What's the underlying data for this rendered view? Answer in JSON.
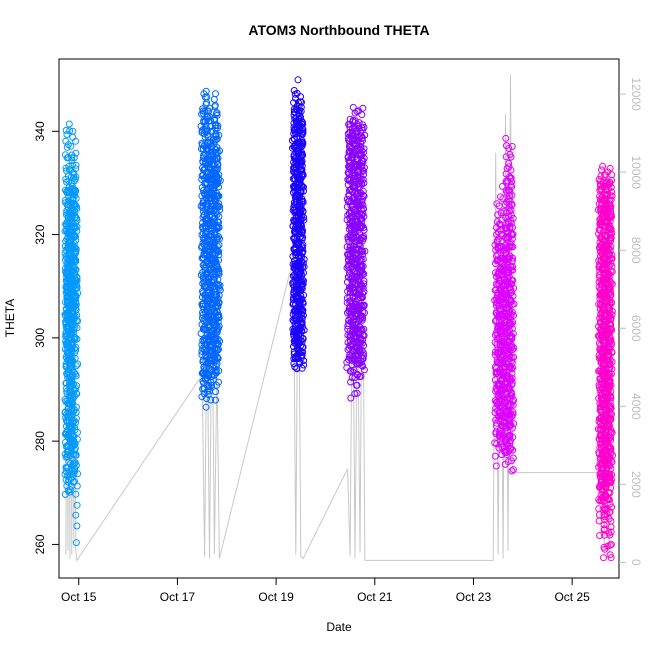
{
  "chart_data": {
    "type": "scatter",
    "title": "ATOM3 Northbound THETA",
    "xlabel": "Date",
    "ylabel": "THETA",
    "x_ticks": [
      "Oct 15",
      "Oct 17",
      "Oct 19",
      "Oct 21",
      "Oct 23",
      "Oct 25"
    ],
    "y_ticks_left": [
      "260",
      "280",
      "300",
      "320",
      "340"
    ],
    "y_ticks_right": [
      "0",
      "2000",
      "4000",
      "6000",
      "8000",
      "10000",
      "12000"
    ],
    "xlim_days": [
      14.6,
      25.95
    ],
    "ylim_left": [
      253.5,
      354
    ],
    "ylim_right": [
      -400,
      12900
    ],
    "colors": {
      "axis": "#000000",
      "right_axis": "#bdbdbd",
      "secondary_line": "#c8c8c8"
    },
    "series": [
      {
        "color": "#0099ff",
        "point_runs": [
          {
            "x": [
              14.74,
              14.96
            ],
            "y_low": [
              270,
              311
            ],
            "y_high": [
              312,
              342
            ],
            "n": 26
          },
          {
            "x": [
              14.74,
              14.96
            ],
            "y_low": [
              260,
              286
            ],
            "y_high": [
              276,
              330
            ],
            "n": 12
          }
        ]
      },
      {
        "color": "#0066ff",
        "point_runs": [
          {
            "x": [
              17.5,
              17.85
            ],
            "y_low": [
              287,
              298
            ],
            "y_high": [
              330,
              349
            ],
            "n": 30
          }
        ]
      },
      {
        "color": "#1a00ff",
        "point_runs": [
          {
            "x": [
              19.35,
              19.55
            ],
            "y_low": [
              294,
              298
            ],
            "y_high": [
              340,
              350
            ],
            "n": 22
          }
        ]
      },
      {
        "color": "#8800ff",
        "point_runs": [
          {
            "x": [
              20.45,
              20.78
            ],
            "y_low": [
              289,
              300
            ],
            "y_high": [
              338,
              345
            ],
            "n": 26
          }
        ]
      },
      {
        "color": "#dd00ff",
        "point_runs": [
          {
            "x": [
              23.45,
              23.8
            ],
            "y_low": [
              274,
              285
            ],
            "y_high": [
              310,
              339
            ],
            "n": 28
          }
        ]
      },
      {
        "color": "#ff00cc",
        "point_runs": [
          {
            "x": [
              25.55,
              25.8
            ],
            "y_low": [
              257,
              275
            ],
            "y_high": [
              325,
              333
            ],
            "n": 26
          }
        ]
      }
    ],
    "secondary_line": {
      "axis": "right",
      "x": [
        14.74,
        14.76,
        14.78,
        14.8,
        14.82,
        14.84,
        14.86,
        14.88,
        14.9,
        14.92,
        14.94,
        14.96,
        17.5,
        17.55,
        17.6,
        17.65,
        17.7,
        17.75,
        17.8,
        17.85,
        19.35,
        19.4,
        19.45,
        19.5,
        19.55,
        20.45,
        20.5,
        20.55,
        20.6,
        20.65,
        20.7,
        20.75,
        20.8,
        23.4,
        23.45,
        23.5,
        23.55,
        23.6,
        23.65,
        23.7,
        23.75,
        23.8,
        25.55,
        25.6,
        25.65,
        25.7,
        25.75,
        25.8
      ],
      "y": [
        200,
        9000,
        300,
        7500,
        100,
        10000,
        200,
        8000,
        600,
        6000,
        300,
        50,
        4800,
        150,
        6500,
        100,
        7000,
        200,
        5000,
        100,
        7800,
        200,
        9000,
        150,
        100,
        2400,
        150,
        8000,
        100,
        7000,
        250,
        9000,
        50,
        50,
        10500,
        200,
        8000,
        100,
        11500,
        300,
        12500,
        2300,
        2300,
        9000,
        300,
        5000,
        100,
        2300
      ]
    }
  }
}
